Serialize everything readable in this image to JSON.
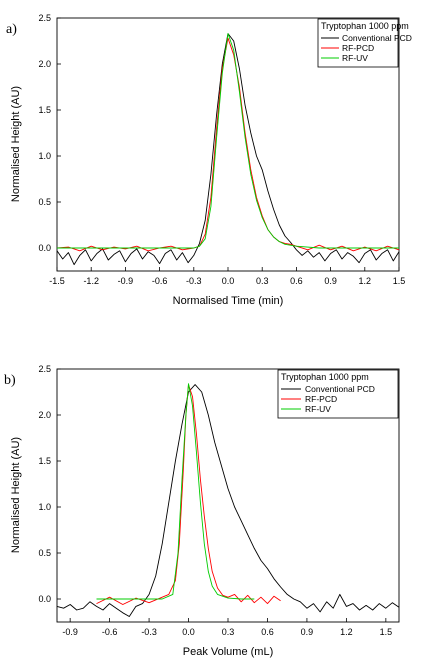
{
  "chart_data": [
    {
      "panel_label": "a)",
      "type": "line",
      "xlabel": "Normalised Time (min)",
      "ylabel": "Normalised Height (AU)",
      "xlim": [
        -1.5,
        1.5
      ],
      "ylim": [
        -0.25,
        2.5
      ],
      "x_ticks": [
        "-1.5",
        "-1.2",
        "-0.9",
        "-0.6",
        "-0.3",
        "0.0",
        "0.3",
        "0.6",
        "0.9",
        "1.2",
        "1.5"
      ],
      "y_ticks": [
        "0.0",
        "0.5",
        "1.0",
        "1.5",
        "2.0",
        "2.5"
      ],
      "legend_title": "Tryptophan 1000 ppm",
      "legend_position": "top-right",
      "series": [
        {
          "name": "Conventional PCD",
          "color": "#000000",
          "points": [
            [
              -1.5,
              -0.03
            ],
            [
              -1.45,
              -0.12
            ],
            [
              -1.4,
              -0.05
            ],
            [
              -1.35,
              -0.18
            ],
            [
              -1.3,
              -0.08
            ],
            [
              -1.25,
              -0.02
            ],
            [
              -1.2,
              -0.14
            ],
            [
              -1.15,
              -0.06
            ],
            [
              -1.1,
              -0.01
            ],
            [
              -1.05,
              -0.13
            ],
            [
              -1.0,
              -0.07
            ],
            [
              -0.95,
              -0.03
            ],
            [
              -0.9,
              -0.15
            ],
            [
              -0.85,
              -0.06
            ],
            [
              -0.8,
              -0.01
            ],
            [
              -0.75,
              -0.12
            ],
            [
              -0.7,
              -0.04
            ],
            [
              -0.65,
              -0.08
            ],
            [
              -0.6,
              -0.17
            ],
            [
              -0.55,
              -0.06
            ],
            [
              -0.5,
              -0.02
            ],
            [
              -0.45,
              -0.13
            ],
            [
              -0.4,
              -0.05
            ],
            [
              -0.35,
              -0.16
            ],
            [
              -0.3,
              -0.08
            ],
            [
              -0.25,
              0.05
            ],
            [
              -0.2,
              0.3
            ],
            [
              -0.15,
              0.8
            ],
            [
              -0.1,
              1.45
            ],
            [
              -0.05,
              2.0
            ],
            [
              0.0,
              2.33
            ],
            [
              0.05,
              2.25
            ],
            [
              0.1,
              1.95
            ],
            [
              0.15,
              1.55
            ],
            [
              0.2,
              1.25
            ],
            [
              0.25,
              1.0
            ],
            [
              0.3,
              0.85
            ],
            [
              0.35,
              0.62
            ],
            [
              0.4,
              0.42
            ],
            [
              0.45,
              0.25
            ],
            [
              0.5,
              0.13
            ],
            [
              0.55,
              0.06
            ],
            [
              0.6,
              -0.02
            ],
            [
              0.65,
              -0.08
            ],
            [
              0.7,
              -0.03
            ],
            [
              0.75,
              -0.1
            ],
            [
              0.8,
              -0.05
            ],
            [
              0.85,
              -0.14
            ],
            [
              0.9,
              -0.06
            ],
            [
              0.95,
              -0.02
            ],
            [
              1.0,
              -0.12
            ],
            [
              1.05,
              -0.05
            ],
            [
              1.1,
              -0.09
            ],
            [
              1.15,
              -0.16
            ],
            [
              1.2,
              -0.06
            ],
            [
              1.25,
              -0.02
            ],
            [
              1.3,
              -0.13
            ],
            [
              1.35,
              -0.06
            ],
            [
              1.4,
              -0.02
            ],
            [
              1.45,
              -0.14
            ],
            [
              1.5,
              -0.04
            ]
          ]
        },
        {
          "name": "RF-PCD",
          "color": "#ff0000",
          "points": [
            [
              -1.5,
              0.0
            ],
            [
              -1.4,
              0.01
            ],
            [
              -1.3,
              -0.03
            ],
            [
              -1.2,
              0.02
            ],
            [
              -1.1,
              -0.02
            ],
            [
              -1.0,
              0.01
            ],
            [
              -0.9,
              -0.01
            ],
            [
              -0.8,
              0.02
            ],
            [
              -0.7,
              -0.03
            ],
            [
              -0.6,
              0.0
            ],
            [
              -0.5,
              0.02
            ],
            [
              -0.4,
              -0.02
            ],
            [
              -0.3,
              0.0
            ],
            [
              -0.25,
              0.02
            ],
            [
              -0.2,
              0.15
            ],
            [
              -0.15,
              0.55
            ],
            [
              -0.1,
              1.3
            ],
            [
              -0.05,
              1.95
            ],
            [
              0.0,
              2.28
            ],
            [
              0.05,
              2.1
            ],
            [
              0.1,
              1.75
            ],
            [
              0.15,
              1.25
            ],
            [
              0.2,
              0.85
            ],
            [
              0.25,
              0.55
            ],
            [
              0.3,
              0.35
            ],
            [
              0.35,
              0.2
            ],
            [
              0.4,
              0.12
            ],
            [
              0.45,
              0.07
            ],
            [
              0.5,
              0.05
            ],
            [
              0.55,
              0.04
            ],
            [
              0.6,
              0.02
            ],
            [
              0.7,
              -0.02
            ],
            [
              0.8,
              0.03
            ],
            [
              0.9,
              -0.02
            ],
            [
              1.0,
              0.02
            ],
            [
              1.1,
              -0.03
            ],
            [
              1.2,
              0.01
            ],
            [
              1.3,
              -0.03
            ],
            [
              1.4,
              0.02
            ],
            [
              1.5,
              -0.02
            ]
          ]
        },
        {
          "name": "RF-UV",
          "color": "#00cc00",
          "points": [
            [
              -1.5,
              0.0
            ],
            [
              -1.2,
              0.0
            ],
            [
              -0.9,
              0.0
            ],
            [
              -0.6,
              0.0
            ],
            [
              -0.3,
              0.0
            ],
            [
              -0.25,
              0.02
            ],
            [
              -0.2,
              0.1
            ],
            [
              -0.15,
              0.45
            ],
            [
              -0.1,
              1.2
            ],
            [
              -0.05,
              1.9
            ],
            [
              0.0,
              2.33
            ],
            [
              0.05,
              2.15
            ],
            [
              0.1,
              1.7
            ],
            [
              0.15,
              1.2
            ],
            [
              0.2,
              0.8
            ],
            [
              0.25,
              0.52
            ],
            [
              0.3,
              0.33
            ],
            [
              0.35,
              0.2
            ],
            [
              0.4,
              0.12
            ],
            [
              0.45,
              0.07
            ],
            [
              0.5,
              0.04
            ],
            [
              0.6,
              0.02
            ],
            [
              0.8,
              0.0
            ],
            [
              1.0,
              0.0
            ],
            [
              1.2,
              0.0
            ],
            [
              1.5,
              0.0
            ]
          ]
        }
      ]
    },
    {
      "panel_label": "b)",
      "type": "line",
      "xlabel": "Peak Volume (mL)",
      "ylabel": "Normalised Height (AU)",
      "xlim": [
        -1.0,
        1.6
      ],
      "ylim": [
        -0.25,
        2.5
      ],
      "x_ticks": [
        "-0.9",
        "-0.6",
        "-0.3",
        "0.0",
        "0.3",
        "0.6",
        "0.9",
        "1.2",
        "1.5"
      ],
      "y_ticks": [
        "0.0",
        "0.5",
        "1.0",
        "1.5",
        "2.0",
        "2.5"
      ],
      "legend_title": "Tryptophan 1000 ppm",
      "legend_position": "top-right",
      "series": [
        {
          "name": "Conventional PCD",
          "color": "#000000",
          "points": [
            [
              -1.0,
              -0.08
            ],
            [
              -0.95,
              -0.1
            ],
            [
              -0.9,
              -0.06
            ],
            [
              -0.85,
              -0.12
            ],
            [
              -0.8,
              -0.1
            ],
            [
              -0.75,
              -0.03
            ],
            [
              -0.7,
              -0.08
            ],
            [
              -0.65,
              -0.12
            ],
            [
              -0.6,
              -0.05
            ],
            [
              -0.55,
              -0.1
            ],
            [
              -0.5,
              -0.15
            ],
            [
              -0.45,
              -0.19
            ],
            [
              -0.4,
              -0.08
            ],
            [
              -0.35,
              -0.05
            ],
            [
              -0.3,
              0.05
            ],
            [
              -0.25,
              0.25
            ],
            [
              -0.2,
              0.6
            ],
            [
              -0.15,
              1.05
            ],
            [
              -0.1,
              1.5
            ],
            [
              -0.05,
              1.9
            ],
            [
              0.0,
              2.25
            ],
            [
              0.05,
              2.33
            ],
            [
              0.1,
              2.25
            ],
            [
              0.15,
              2.0
            ],
            [
              0.2,
              1.7
            ],
            [
              0.25,
              1.45
            ],
            [
              0.3,
              1.2
            ],
            [
              0.35,
              1.0
            ],
            [
              0.4,
              0.85
            ],
            [
              0.45,
              0.7
            ],
            [
              0.5,
              0.55
            ],
            [
              0.55,
              0.42
            ],
            [
              0.6,
              0.33
            ],
            [
              0.65,
              0.22
            ],
            [
              0.7,
              0.13
            ],
            [
              0.75,
              0.05
            ],
            [
              0.8,
              0.0
            ],
            [
              0.85,
              -0.03
            ],
            [
              0.9,
              -0.1
            ],
            [
              0.95,
              -0.05
            ],
            [
              1.0,
              -0.14
            ],
            [
              1.05,
              -0.03
            ],
            [
              1.1,
              -0.1
            ],
            [
              1.15,
              0.05
            ],
            [
              1.2,
              -0.08
            ],
            [
              1.25,
              -0.05
            ],
            [
              1.3,
              -0.12
            ],
            [
              1.35,
              -0.07
            ],
            [
              1.4,
              -0.12
            ],
            [
              1.45,
              -0.05
            ],
            [
              1.5,
              -0.1
            ],
            [
              1.55,
              -0.04
            ],
            [
              1.6,
              -0.09
            ]
          ]
        },
        {
          "name": "RF-PCD",
          "color": "#ff0000",
          "points": [
            [
              -0.7,
              -0.05
            ],
            [
              -0.6,
              0.02
            ],
            [
              -0.5,
              -0.06
            ],
            [
              -0.4,
              0.01
            ],
            [
              -0.3,
              -0.04
            ],
            [
              -0.2,
              0.02
            ],
            [
              -0.15,
              0.05
            ],
            [
              -0.1,
              0.2
            ],
            [
              -0.07,
              0.6
            ],
            [
              -0.04,
              1.4
            ],
            [
              -0.02,
              2.0
            ],
            [
              0.0,
              2.33
            ],
            [
              0.03,
              2.2
            ],
            [
              0.06,
              1.8
            ],
            [
              0.09,
              1.3
            ],
            [
              0.12,
              0.9
            ],
            [
              0.15,
              0.55
            ],
            [
              0.18,
              0.3
            ],
            [
              0.22,
              0.12
            ],
            [
              0.26,
              0.04
            ],
            [
              0.3,
              0.02
            ],
            [
              0.35,
              0.05
            ],
            [
              0.4,
              -0.03
            ],
            [
              0.45,
              0.04
            ],
            [
              0.5,
              -0.04
            ],
            [
              0.55,
              0.02
            ],
            [
              0.6,
              -0.05
            ],
            [
              0.65,
              0.03
            ],
            [
              0.7,
              -0.02
            ]
          ]
        },
        {
          "name": "RF-UV",
          "color": "#00cc00",
          "points": [
            [
              -0.7,
              0.0
            ],
            [
              -0.4,
              0.0
            ],
            [
              -0.2,
              0.0
            ],
            [
              -0.12,
              0.05
            ],
            [
              -0.08,
              0.5
            ],
            [
              -0.05,
              1.3
            ],
            [
              -0.02,
              2.0
            ],
            [
              0.0,
              2.34
            ],
            [
              0.03,
              2.1
            ],
            [
              0.06,
              1.6
            ],
            [
              0.09,
              1.05
            ],
            [
              0.12,
              0.6
            ],
            [
              0.15,
              0.3
            ],
            [
              0.18,
              0.14
            ],
            [
              0.22,
              0.05
            ],
            [
              0.3,
              0.01
            ],
            [
              0.4,
              0.0
            ],
            [
              0.5,
              0.0
            ]
          ]
        }
      ]
    }
  ]
}
